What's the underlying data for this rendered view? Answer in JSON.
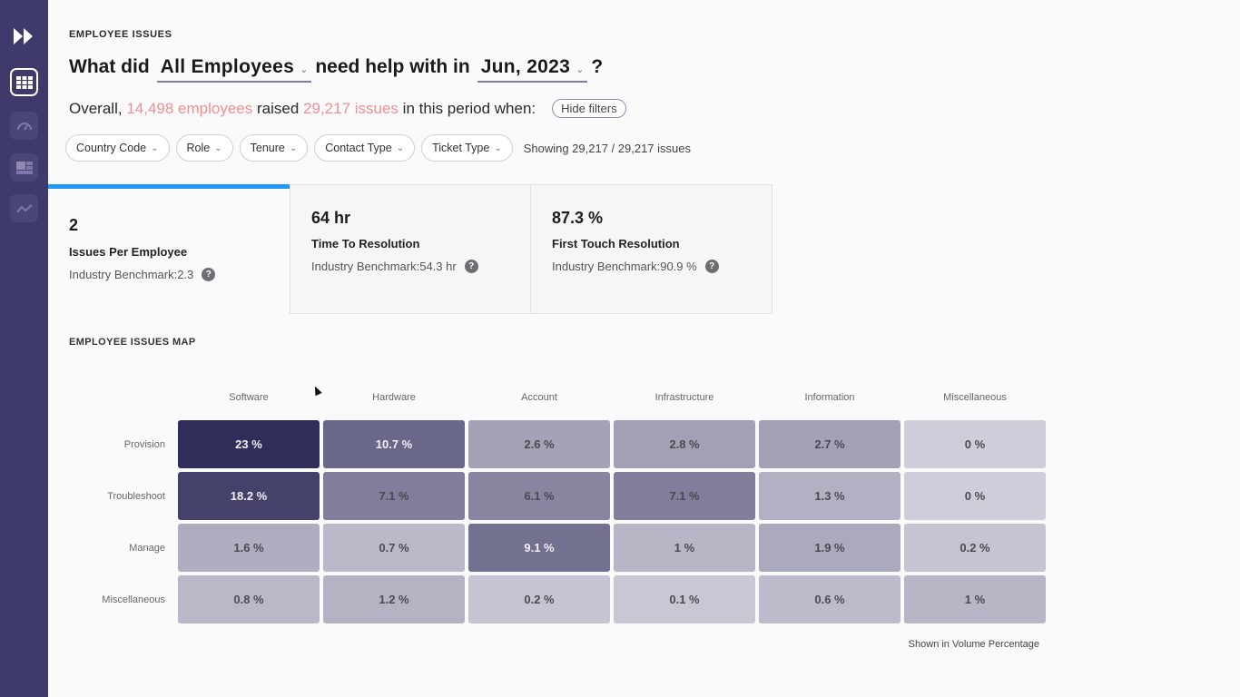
{
  "sidebar": {
    "items": [
      {
        "name": "fast-forward-icon"
      },
      {
        "name": "grid-icon",
        "active": true
      },
      {
        "name": "gauge-icon"
      },
      {
        "name": "table-layout-icon"
      },
      {
        "name": "trend-line-icon"
      }
    ]
  },
  "header": {
    "eyebrow": "EMPLOYEE ISSUES",
    "headline_prefix": "What did",
    "audience": "All Employees",
    "headline_middle": "need help with in",
    "period": "Jun, 2023",
    "headline_suffix": "?"
  },
  "summary": {
    "prefix": "Overall,",
    "employees": "14,498 employees",
    "middle": "raised",
    "issues": "29,217 issues",
    "suffix": "in this period when:",
    "hide_filters": "Hide filters"
  },
  "filters": {
    "chips": [
      "Country Code",
      "Role",
      "Tenure",
      "Contact Type",
      "Ticket Type"
    ],
    "showing": "Showing 29,217 / 29,217 issues"
  },
  "kpis": [
    {
      "value": "2",
      "label": "Issues Per Employee",
      "benchmark": "Industry Benchmark:2.3"
    },
    {
      "value": "64 hr",
      "label": "Time To Resolution",
      "benchmark": "Industry Benchmark:54.3 hr"
    },
    {
      "value": "87.3 %",
      "label": "First Touch Resolution",
      "benchmark": "Industry Benchmark:90.9 %"
    }
  ],
  "map": {
    "title": "EMPLOYEE ISSUES MAP",
    "footnote": "Shown in Volume Percentage"
  },
  "chart_data": {
    "type": "heatmap",
    "title": "EMPLOYEE ISSUES MAP",
    "x": [
      "Software",
      "Hardware",
      "Account",
      "Infrastructure",
      "Information",
      "Miscellaneous"
    ],
    "y": [
      "Provision",
      "Troubleshoot",
      "Manage",
      "Miscellaneous"
    ],
    "values": [
      [
        23,
        10.7,
        2.6,
        2.8,
        2.7,
        0
      ],
      [
        18.2,
        7.1,
        6.1,
        7.1,
        1.3,
        0
      ],
      [
        1.6,
        0.7,
        9.1,
        1,
        1.9,
        0.2
      ],
      [
        0.8,
        1.2,
        0.2,
        0.1,
        0.6,
        1
      ]
    ],
    "labels": [
      [
        "23 %",
        "10.7 %",
        "2.6 %",
        "2.8 %",
        "2.7 %",
        "0 %"
      ],
      [
        "18.2 %",
        "7.1 %",
        "6.1 %",
        "7.1 %",
        "1.3 %",
        "0 %"
      ],
      [
        "1.6 %",
        "0.7 %",
        "9.1 %",
        "1 %",
        "1.9 %",
        "0.2 %"
      ],
      [
        "0.8 %",
        "1.2 %",
        "0.2 %",
        "0.1 %",
        "0.6 %",
        "1 %"
      ]
    ],
    "unit": "Volume Percentage",
    "color_low": "#cfcdd9",
    "color_high": "#2f2d5a"
  },
  "colors": {
    "accent": "#2196f3",
    "highlight": "#ef8f93",
    "sidebar": "#3e3a6b"
  }
}
